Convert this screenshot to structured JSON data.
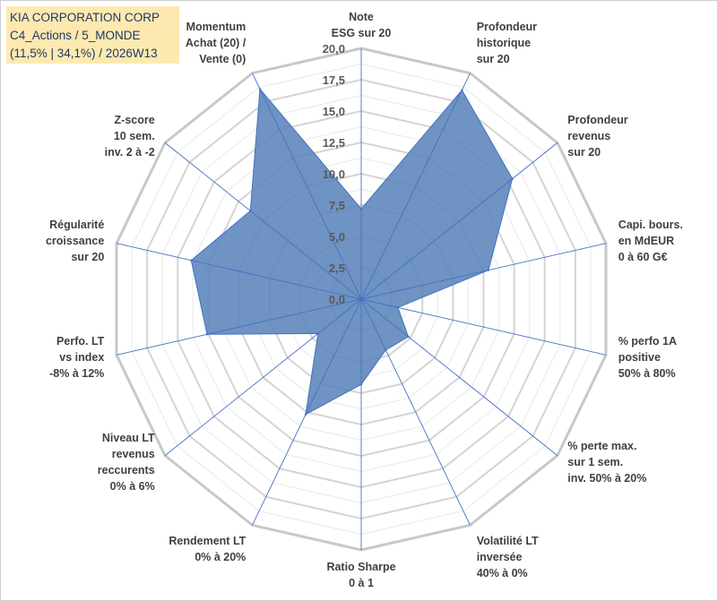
{
  "header": {
    "line1": "KIA CORPORATION CORP",
    "line2": "C4_Actions / 5_MONDE",
    "line3": "(11,5% | 34,1%) / 2026W13"
  },
  "colors": {
    "fill": "#5b84b9",
    "stroke": "#4472c4",
    "grid": "#d0d0d0",
    "spoke": "#4472c4",
    "title_bg": "#fde9b0"
  },
  "chart_data": {
    "type": "radar",
    "title": "KIA CORPORATION CORP",
    "rmin": 0,
    "rmax": 20,
    "ticks": [
      "0,0",
      "2,5",
      "5,0",
      "7,5",
      "10,0",
      "12,5",
      "15,0",
      "17,5",
      "20,0"
    ],
    "categories": [
      [
        "Note",
        "ESG sur 20"
      ],
      [
        "Profondeur",
        "historique",
        "sur 20"
      ],
      [
        "Profondeur",
        "revenus",
        "sur 20"
      ],
      [
        "Capi. bours.",
        "en MdEUR",
        "0 à 60 G€"
      ],
      [
        "% perfo 1A",
        "positive",
        "50% à 80%"
      ],
      [
        "% perte max.",
        "sur 1 sem.",
        "inv. 50% à 20%"
      ],
      [
        "Volatilité LT",
        "inversée",
        "40% à 0%"
      ],
      [
        "Ratio Sharpe",
        "0 à 1"
      ],
      [
        "Rendement LT",
        "0% à 20%"
      ],
      [
        "Niveau LT",
        "revenus",
        "reccurents",
        "0% à 6%"
      ],
      [
        "Perfo. LT",
        "vs index",
        "-8% à 12%"
      ],
      [
        "Régularité",
        "croissance",
        "sur 20"
      ],
      [
        "Z-score",
        "10 sem.",
        "inv. 2 à -2"
      ],
      [
        "Momentum",
        "Achat (20) /",
        "Vente (0)"
      ]
    ],
    "series": [
      {
        "name": "KIA CORPORATION CORP",
        "values": [
          7.2,
          18.5,
          15.4,
          10.4,
          3.0,
          4.8,
          4.5,
          6.8,
          10.2,
          4.4,
          12.6,
          13.9,
          11.3,
          18.6
        ]
      }
    ]
  }
}
